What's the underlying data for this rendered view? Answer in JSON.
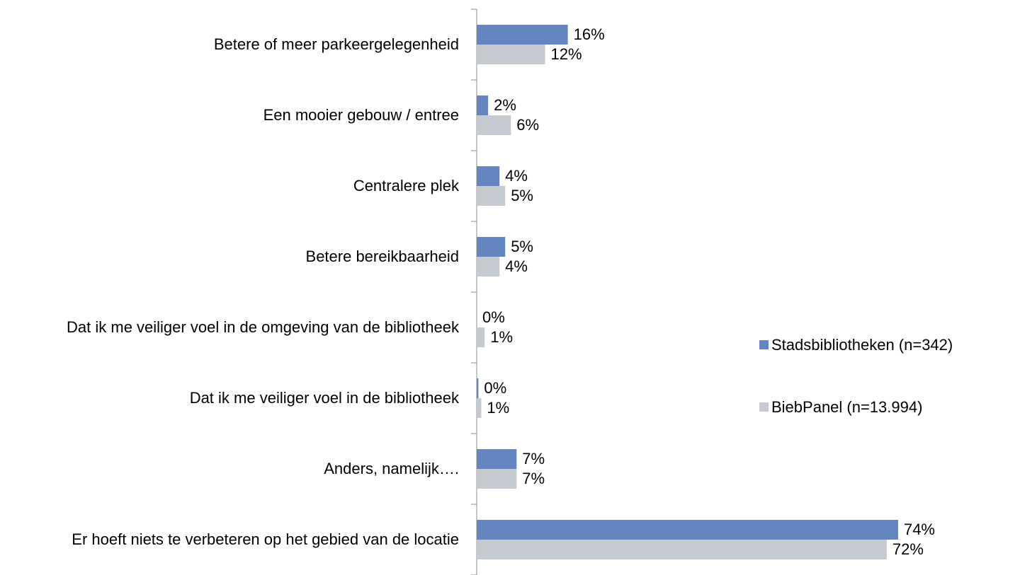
{
  "chart_data": {
    "type": "hbar",
    "categories": [
      "Betere of meer parkeergelegenheid",
      "Een mooier gebouw / entree",
      "Centralere plek",
      "Betere bereikbaarheid",
      "Dat ik me veiliger voel in de omgeving van de bibliotheek",
      "Dat ik me veiliger voel in de bibliotheek",
      "Anders, namelijk….",
      "Er hoeft niets te verbeteren op het gebied van de locatie"
    ],
    "series": [
      {
        "name": "Stadsbibliotheken (n=342)",
        "color": "#6585c1",
        "values": [
          16,
          2,
          4,
          5,
          0,
          0.3,
          7,
          74
        ],
        "value_labels": [
          "16%",
          "2%",
          "4%",
          "5%",
          "0%",
          "0%",
          "7%",
          "74%"
        ]
      },
      {
        "name": "BiebPanel (n=13.994)",
        "color": "#c5cad0",
        "values": [
          12,
          6,
          5,
          4,
          1.4,
          0.8,
          7,
          72
        ],
        "value_labels": [
          "12%",
          "6%",
          "5%",
          "4%",
          "1%",
          "1%",
          "7%",
          "72%"
        ]
      }
    ],
    "xlim": [
      0,
      80
    ],
    "legend": "right"
  }
}
